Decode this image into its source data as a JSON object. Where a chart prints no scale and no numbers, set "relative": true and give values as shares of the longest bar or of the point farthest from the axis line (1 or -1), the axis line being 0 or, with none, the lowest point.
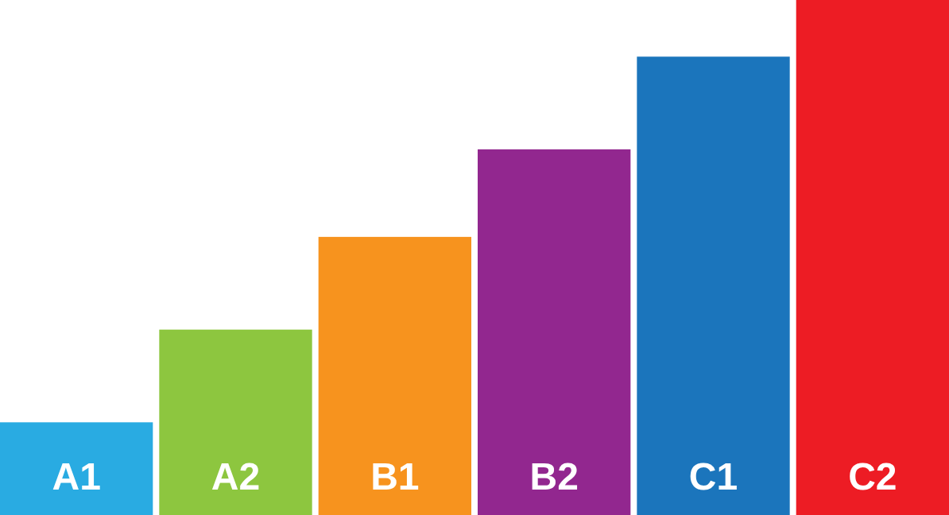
{
  "chart_data": {
    "type": "bar",
    "relative": true,
    "categories": [
      "A1",
      "A2",
      "B1",
      "B2",
      "C1",
      "C2"
    ],
    "values": [
      0.18,
      0.36,
      0.54,
      0.71,
      0.89,
      1
    ],
    "colors": [
      "#29abe2",
      "#8dc63f",
      "#f7931e",
      "#92278f",
      "#1b75bc",
      "#ed1c24"
    ]
  }
}
